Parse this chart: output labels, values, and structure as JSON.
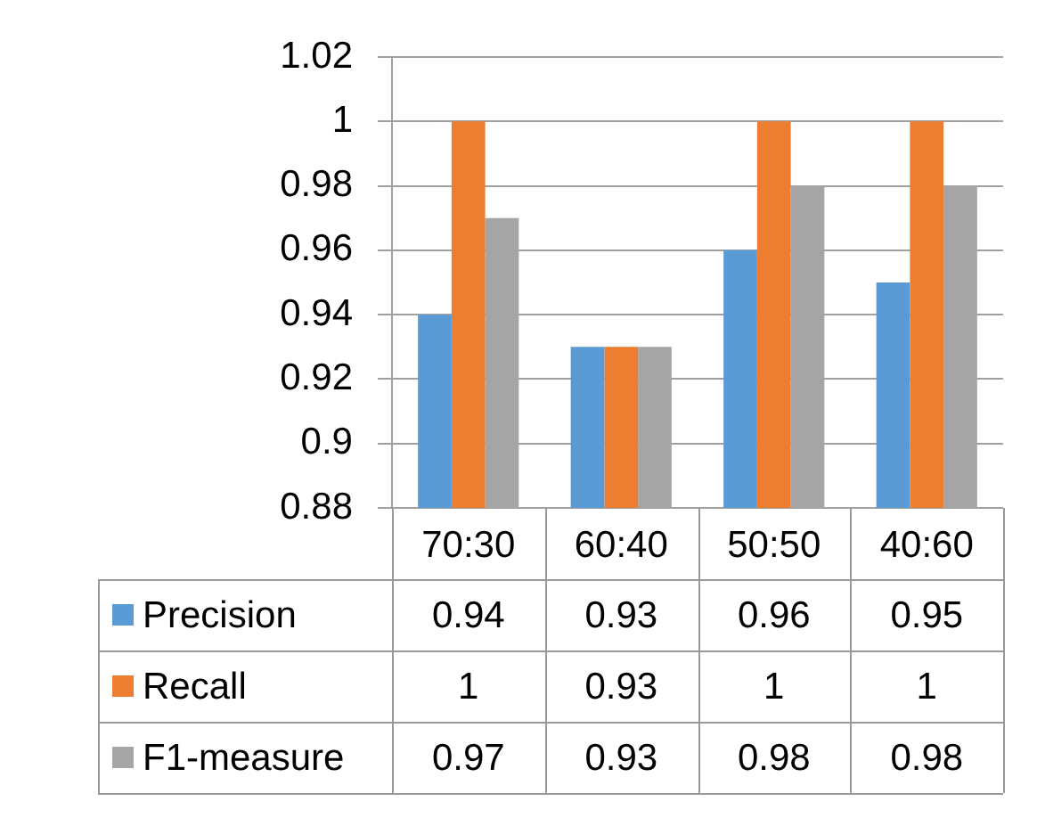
{
  "chart_data": {
    "type": "bar",
    "categories": [
      "70:30",
      "60:40",
      "50:50",
      "40:60"
    ],
    "series": [
      {
        "name": "Precision",
        "color": "#5b9bd5",
        "values": [
          0.94,
          0.93,
          0.96,
          0.95
        ]
      },
      {
        "name": "Recall",
        "color": "#ed7d31",
        "values": [
          1,
          0.93,
          1,
          1
        ]
      },
      {
        "name": "F1-measure",
        "color": "#a5a5a5",
        "values": [
          0.97,
          0.93,
          0.98,
          0.98
        ]
      }
    ],
    "ylim": [
      0.88,
      1.02
    ],
    "yticks": [
      0.88,
      0.9,
      0.92,
      0.94,
      0.96,
      0.98,
      1,
      1.02
    ],
    "grid": "y",
    "legend": "bottom",
    "data_labels": true
  }
}
